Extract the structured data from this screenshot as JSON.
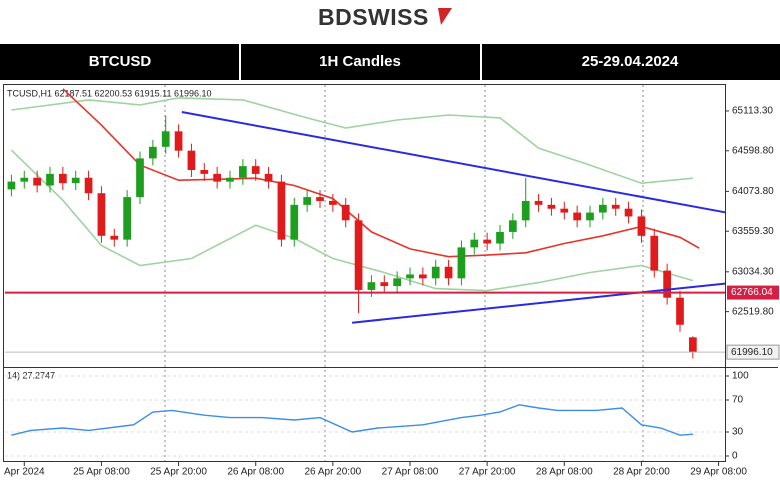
{
  "header": {
    "logo": "BDSWISS",
    "symbol": "BTCUSD",
    "timeframe": "1H Candles",
    "dates": "25-29.04.2024"
  },
  "chart_data": [
    {
      "type": "candlestick",
      "title": "TCUSD,H1  62187.51  62200.53  61915.11  61996.10",
      "x": [
        -2,
        0,
        2,
        4,
        6,
        8,
        10,
        12,
        14,
        16,
        18,
        20,
        22,
        24,
        26,
        28,
        30,
        32,
        34,
        36,
        38,
        40,
        42,
        44,
        46,
        48,
        50,
        52,
        54,
        56,
        58,
        60,
        62,
        64,
        66,
        68,
        70,
        72,
        74,
        76,
        78,
        80,
        82,
        84,
        86,
        88,
        90,
        92,
        94,
        96,
        98,
        100,
        102,
        104
      ],
      "open": [
        64100,
        64200,
        64250,
        64150,
        64300,
        64180,
        64250,
        64050,
        63500,
        63450,
        64000,
        64500,
        64650,
        64850,
        64600,
        64350,
        64300,
        64200,
        64250,
        64400,
        64300,
        64200,
        63450,
        63900,
        64000,
        63950,
        63900,
        63700,
        62800,
        62900,
        62850,
        62950,
        63000,
        62950,
        63100,
        62950,
        63350,
        63450,
        63400,
        63550,
        63700,
        63950,
        63900,
        63850,
        63800,
        63700,
        63800,
        63900,
        63850,
        63750,
        63500,
        63050,
        62700,
        62187.51
      ],
      "high": [
        64290,
        64340,
        64340,
        64390,
        64390,
        64340,
        64340,
        64140,
        63590,
        64090,
        64590,
        64740,
        65050,
        64940,
        64690,
        64440,
        64390,
        64340,
        64490,
        64490,
        64390,
        64290,
        63990,
        64090,
        64090,
        64040,
        63990,
        63790,
        62990,
        62990,
        63040,
        63090,
        63090,
        63190,
        63190,
        63440,
        63540,
        63540,
        63640,
        63790,
        64250,
        64040,
        63990,
        63940,
        63890,
        63890,
        63990,
        63990,
        63940,
        63840,
        63590,
        63140,
        62790,
        62200.53
      ],
      "low": [
        64010,
        64110,
        64060,
        64060,
        64090,
        64090,
        63960,
        63410,
        63360,
        63360,
        63910,
        64410,
        64560,
        64510,
        64260,
        64210,
        64110,
        64110,
        64160,
        64210,
        64110,
        63360,
        63360,
        63810,
        63860,
        63810,
        63610,
        62500,
        62710,
        62760,
        62760,
        62860,
        62860,
        62860,
        62860,
        62860,
        63260,
        63310,
        63310,
        63460,
        63610,
        63810,
        63760,
        63710,
        63610,
        63610,
        63710,
        63760,
        63660,
        63410,
        62960,
        62610,
        62260,
        61915.11
      ],
      "close": [
        64200,
        64250,
        64150,
        64300,
        64180,
        64250,
        64050,
        63500,
        63450,
        64000,
        64500,
        64650,
        64850,
        64600,
        64350,
        64300,
        64200,
        64250,
        64400,
        64300,
        64200,
        63450,
        63900,
        64000,
        63950,
        63900,
        63700,
        62800,
        62900,
        62850,
        62950,
        63000,
        62950,
        63100,
        62950,
        63350,
        63450,
        63400,
        63550,
        63700,
        63950,
        63900,
        63850,
        63800,
        63700,
        63800,
        63900,
        63850,
        63750,
        63500,
        63050,
        62700,
        62350,
        61996.1
      ],
      "up_color": "#1e9e1e",
      "down_color": "#e01b1b",
      "xlim": [
        -3,
        109
      ],
      "ylim": [
        61830,
        65410
      ],
      "yticks": [
        {
          "value": 65113.3,
          "label": "65113.30"
        },
        {
          "value": 64598.8,
          "label": "64598.80"
        },
        {
          "value": 64073.8,
          "label": "64073.80"
        },
        {
          "value": 63559.3,
          "label": "63559.30"
        },
        {
          "value": 63034.3,
          "label": "63034.30"
        },
        {
          "value": 62519.8,
          "label": "62519.80"
        }
      ],
      "overlays": [
        {
          "color": "#9fd39f",
          "x": [
            -2,
            10,
            18,
            24,
            34,
            44,
            50,
            58,
            66,
            74,
            80,
            88,
            96,
            104
          ],
          "values": [
            65126,
            65256,
            65191,
            65282,
            65256,
            65023,
            64893,
            64997,
            65061,
            65023,
            64633,
            64413,
            64180,
            64244
          ]
        },
        {
          "color": "#9fd39f",
          "x": [
            -2,
            6,
            12,
            18,
            26,
            36,
            42,
            48,
            56,
            64,
            72,
            80,
            88,
            96,
            104
          ],
          "values": [
            64607,
            63959,
            63375,
            63116,
            63207,
            63635,
            63466,
            63207,
            63025,
            62818,
            62792,
            62895,
            63025,
            63116,
            62921
          ]
        },
        {
          "color": "#e8322b",
          "x": [
            6,
            12,
            18,
            24,
            30,
            36,
            42,
            48,
            54,
            60,
            66,
            72,
            78,
            84,
            90,
            96,
            102,
            105
          ],
          "values": [
            65400,
            64930,
            64413,
            64218,
            64230,
            64244,
            64150,
            63980,
            63550,
            63330,
            63230,
            63250,
            63280,
            63400,
            63500,
            63620,
            63480,
            63340
          ]
        }
      ],
      "trendlines": [
        {
          "color": "#2a2ae0",
          "x": [
            24.5,
            109
          ],
          "values": [
            65100,
            63803
          ]
        },
        {
          "color": "#2a2ae0",
          "x": [
            51,
            109
          ],
          "values": [
            62377,
            62882
          ]
        }
      ],
      "level": {
        "value": 62766.04,
        "label": "62766.04",
        "color": "#d61f45"
      },
      "last_price": {
        "value": 61996.1,
        "label": "61996.10"
      }
    },
    {
      "type": "line",
      "title": "14) 27.2747",
      "x": [
        -2,
        1,
        6,
        10,
        17,
        20,
        23,
        28,
        32,
        37,
        42,
        46,
        51,
        55,
        62,
        68,
        71,
        74,
        77,
        80,
        83,
        89,
        93,
        96,
        99,
        102,
        104
      ],
      "series": [
        {
          "color": "#3a8ee6",
          "values": [
            26,
            32,
            35,
            32,
            39,
            55,
            57,
            51,
            48,
            48,
            45,
            48,
            30,
            35,
            39,
            48,
            51,
            55,
            64,
            60,
            57,
            57,
            60,
            39,
            35,
            26,
            27.2747
          ]
        }
      ],
      "xlim": [
        -3,
        109
      ],
      "ylim": [
        -7.5,
        107.5
      ],
      "yticks": [
        100,
        70,
        30,
        0
      ],
      "grid": true,
      "xticks": [
        {
          "value": 0,
          "label": "Apr 2024"
        },
        {
          "value": 12,
          "label": "25 Apr 08:00"
        },
        {
          "value": 24,
          "label": "25 Apr 20:00"
        },
        {
          "value": 36,
          "label": "26 Apr 08:00"
        },
        {
          "value": 48,
          "label": "26 Apr 20:00"
        },
        {
          "value": 60,
          "label": "27 Apr 08:00"
        },
        {
          "value": 72,
          "label": "27 Apr 20:00"
        },
        {
          "value": 84,
          "label": "28 Apr 08:00"
        },
        {
          "value": 96,
          "label": "28 Apr 20:00"
        },
        {
          "value": 108,
          "label": "29 Apr 08:00"
        }
      ]
    }
  ]
}
